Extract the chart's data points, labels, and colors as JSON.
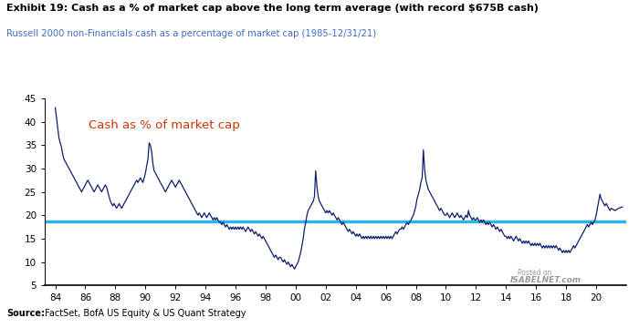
{
  "title": "Exhibit 19: Cash as a % of market cap above the long term average (with record $675B cash)",
  "subtitle": "Russell 2000 non-Financials cash as a percentage of market cap (1985-12/31/21)",
  "annotation": "Cash as % of market cap",
  "avg_line": 18.7,
  "avg_line_color": "#29B5E8",
  "line_color": "#0D1F6E",
  "source_bold": "Source:",
  "source_text": " FactSet, BofA US Equity & US Quant Strategy",
  "ylim": [
    5,
    45
  ],
  "yticks": [
    5,
    10,
    15,
    20,
    25,
    30,
    35,
    40,
    45
  ],
  "xtick_labels": [
    "84",
    "86",
    "88",
    "90",
    "92",
    "94",
    "96",
    "98",
    "00",
    "02",
    "04",
    "06",
    "08",
    "10",
    "12",
    "14",
    "16",
    "18",
    "20"
  ],
  "xtick_years": [
    1984,
    1986,
    1988,
    1990,
    1992,
    1994,
    1996,
    1998,
    2000,
    2002,
    2004,
    2006,
    2008,
    2010,
    2012,
    2014,
    2016,
    2018,
    2020
  ],
  "xlim": [
    1983.3,
    2022.0
  ],
  "data": [
    [
      1984.0,
      43.0
    ],
    [
      1984.08,
      41.0
    ],
    [
      1984.17,
      38.5
    ],
    [
      1984.25,
      36.5
    ],
    [
      1984.33,
      35.5
    ],
    [
      1984.42,
      34.5
    ],
    [
      1984.5,
      33.0
    ],
    [
      1984.58,
      32.0
    ],
    [
      1984.67,
      31.5
    ],
    [
      1984.75,
      31.0
    ],
    [
      1984.83,
      30.5
    ],
    [
      1984.92,
      30.0
    ],
    [
      1985.0,
      29.5
    ],
    [
      1985.08,
      29.0
    ],
    [
      1985.17,
      28.5
    ],
    [
      1985.25,
      28.0
    ],
    [
      1985.33,
      27.5
    ],
    [
      1985.42,
      27.0
    ],
    [
      1985.5,
      26.5
    ],
    [
      1985.58,
      26.0
    ],
    [
      1985.67,
      25.5
    ],
    [
      1985.75,
      25.0
    ],
    [
      1985.83,
      25.5
    ],
    [
      1985.92,
      26.0
    ],
    [
      1986.0,
      26.5
    ],
    [
      1986.08,
      27.0
    ],
    [
      1986.17,
      27.5
    ],
    [
      1986.25,
      27.0
    ],
    [
      1986.33,
      26.5
    ],
    [
      1986.42,
      26.0
    ],
    [
      1986.5,
      25.5
    ],
    [
      1986.58,
      25.0
    ],
    [
      1986.67,
      25.5
    ],
    [
      1986.75,
      26.0
    ],
    [
      1986.83,
      26.5
    ],
    [
      1986.92,
      26.0
    ],
    [
      1987.0,
      25.5
    ],
    [
      1987.08,
      25.0
    ],
    [
      1987.17,
      25.5
    ],
    [
      1987.25,
      26.0
    ],
    [
      1987.33,
      26.5
    ],
    [
      1987.42,
      26.0
    ],
    [
      1987.5,
      25.0
    ],
    [
      1987.58,
      24.0
    ],
    [
      1987.67,
      23.0
    ],
    [
      1987.75,
      22.5
    ],
    [
      1987.83,
      22.0
    ],
    [
      1987.92,
      22.5
    ],
    [
      1988.0,
      22.0
    ],
    [
      1988.08,
      21.5
    ],
    [
      1988.17,
      22.0
    ],
    [
      1988.25,
      22.5
    ],
    [
      1988.33,
      22.0
    ],
    [
      1988.42,
      21.5
    ],
    [
      1988.5,
      22.0
    ],
    [
      1988.58,
      22.5
    ],
    [
      1988.67,
      23.0
    ],
    [
      1988.75,
      23.5
    ],
    [
      1988.83,
      24.0
    ],
    [
      1988.92,
      24.5
    ],
    [
      1989.0,
      25.0
    ],
    [
      1989.08,
      25.5
    ],
    [
      1989.17,
      26.0
    ],
    [
      1989.25,
      26.5
    ],
    [
      1989.33,
      27.0
    ],
    [
      1989.42,
      27.5
    ],
    [
      1989.5,
      27.0
    ],
    [
      1989.58,
      27.5
    ],
    [
      1989.67,
      28.0
    ],
    [
      1989.75,
      27.5
    ],
    [
      1989.83,
      27.0
    ],
    [
      1989.92,
      28.0
    ],
    [
      1990.0,
      29.0
    ],
    [
      1990.08,
      30.5
    ],
    [
      1990.17,
      32.0
    ],
    [
      1990.25,
      35.5
    ],
    [
      1990.33,
      35.0
    ],
    [
      1990.42,
      33.5
    ],
    [
      1990.5,
      31.0
    ],
    [
      1990.58,
      29.5
    ],
    [
      1990.67,
      29.0
    ],
    [
      1990.75,
      28.5
    ],
    [
      1990.83,
      28.0
    ],
    [
      1990.92,
      27.5
    ],
    [
      1991.0,
      27.0
    ],
    [
      1991.08,
      26.5
    ],
    [
      1991.17,
      26.0
    ],
    [
      1991.25,
      25.5
    ],
    [
      1991.33,
      25.0
    ],
    [
      1991.42,
      25.5
    ],
    [
      1991.5,
      26.0
    ],
    [
      1991.58,
      26.5
    ],
    [
      1991.67,
      27.0
    ],
    [
      1991.75,
      27.5
    ],
    [
      1991.83,
      27.0
    ],
    [
      1991.92,
      26.5
    ],
    [
      1992.0,
      26.0
    ],
    [
      1992.08,
      26.5
    ],
    [
      1992.17,
      27.0
    ],
    [
      1992.25,
      27.5
    ],
    [
      1992.33,
      27.0
    ],
    [
      1992.42,
      26.5
    ],
    [
      1992.5,
      26.0
    ],
    [
      1992.58,
      25.5
    ],
    [
      1992.67,
      25.0
    ],
    [
      1992.75,
      24.5
    ],
    [
      1992.83,
      24.0
    ],
    [
      1992.92,
      23.5
    ],
    [
      1993.0,
      23.0
    ],
    [
      1993.08,
      22.5
    ],
    [
      1993.17,
      22.0
    ],
    [
      1993.25,
      21.5
    ],
    [
      1993.33,
      21.0
    ],
    [
      1993.42,
      20.5
    ],
    [
      1993.5,
      20.0
    ],
    [
      1993.58,
      20.5
    ],
    [
      1993.67,
      20.0
    ],
    [
      1993.75,
      19.5
    ],
    [
      1993.83,
      20.0
    ],
    [
      1993.92,
      20.5
    ],
    [
      1994.0,
      20.0
    ],
    [
      1994.08,
      19.5
    ],
    [
      1994.17,
      20.0
    ],
    [
      1994.25,
      20.5
    ],
    [
      1994.33,
      20.0
    ],
    [
      1994.42,
      19.5
    ],
    [
      1994.5,
      19.0
    ],
    [
      1994.58,
      19.5
    ],
    [
      1994.67,
      19.0
    ],
    [
      1994.75,
      19.5
    ],
    [
      1994.83,
      19.0
    ],
    [
      1994.92,
      18.5
    ],
    [
      1995.0,
      18.5
    ],
    [
      1995.08,
      18.0
    ],
    [
      1995.17,
      18.5
    ],
    [
      1995.25,
      18.0
    ],
    [
      1995.33,
      17.5
    ],
    [
      1995.42,
      18.0
    ],
    [
      1995.5,
      17.5
    ],
    [
      1995.58,
      17.0
    ],
    [
      1995.67,
      17.5
    ],
    [
      1995.75,
      17.0
    ],
    [
      1995.83,
      17.5
    ],
    [
      1995.92,
      17.0
    ],
    [
      1996.0,
      17.5
    ],
    [
      1996.08,
      17.0
    ],
    [
      1996.17,
      17.5
    ],
    [
      1996.25,
      17.0
    ],
    [
      1996.33,
      17.5
    ],
    [
      1996.42,
      17.0
    ],
    [
      1996.5,
      17.5
    ],
    [
      1996.58,
      17.0
    ],
    [
      1996.67,
      16.5
    ],
    [
      1996.75,
      17.0
    ],
    [
      1996.83,
      17.5
    ],
    [
      1996.92,
      17.0
    ],
    [
      1997.0,
      16.5
    ],
    [
      1997.08,
      17.0
    ],
    [
      1997.17,
      16.5
    ],
    [
      1997.25,
      16.0
    ],
    [
      1997.33,
      16.5
    ],
    [
      1997.42,
      16.0
    ],
    [
      1997.5,
      15.5
    ],
    [
      1997.58,
      16.0
    ],
    [
      1997.67,
      15.5
    ],
    [
      1997.75,
      15.0
    ],
    [
      1997.83,
      15.5
    ],
    [
      1997.92,
      15.0
    ],
    [
      1998.0,
      14.5
    ],
    [
      1998.08,
      14.0
    ],
    [
      1998.17,
      13.5
    ],
    [
      1998.25,
      13.0
    ],
    [
      1998.33,
      12.5
    ],
    [
      1998.42,
      12.0
    ],
    [
      1998.5,
      11.5
    ],
    [
      1998.58,
      11.0
    ],
    [
      1998.67,
      11.5
    ],
    [
      1998.75,
      11.0
    ],
    [
      1998.83,
      10.5
    ],
    [
      1998.92,
      11.0
    ],
    [
      1999.0,
      11.0
    ],
    [
      1999.08,
      10.5
    ],
    [
      1999.17,
      10.0
    ],
    [
      1999.25,
      10.5
    ],
    [
      1999.33,
      10.0
    ],
    [
      1999.42,
      9.5
    ],
    [
      1999.5,
      10.0
    ],
    [
      1999.58,
      9.5
    ],
    [
      1999.67,
      9.0
    ],
    [
      1999.75,
      9.5
    ],
    [
      1999.83,
      9.0
    ],
    [
      1999.92,
      8.5
    ],
    [
      2000.0,
      9.0
    ],
    [
      2000.08,
      9.5
    ],
    [
      2000.17,
      10.0
    ],
    [
      2000.25,
      11.0
    ],
    [
      2000.33,
      12.0
    ],
    [
      2000.42,
      13.5
    ],
    [
      2000.5,
      15.0
    ],
    [
      2000.58,
      17.0
    ],
    [
      2000.67,
      18.5
    ],
    [
      2000.75,
      20.0
    ],
    [
      2000.83,
      21.0
    ],
    [
      2000.92,
      21.5
    ],
    [
      2001.0,
      22.0
    ],
    [
      2001.08,
      22.5
    ],
    [
      2001.17,
      23.0
    ],
    [
      2001.25,
      24.0
    ],
    [
      2001.33,
      29.5
    ],
    [
      2001.42,
      26.0
    ],
    [
      2001.5,
      24.0
    ],
    [
      2001.58,
      23.0
    ],
    [
      2001.67,
      22.5
    ],
    [
      2001.75,
      22.0
    ],
    [
      2001.83,
      21.5
    ],
    [
      2001.92,
      21.0
    ],
    [
      2002.0,
      20.5
    ],
    [
      2002.08,
      21.0
    ],
    [
      2002.17,
      20.5
    ],
    [
      2002.25,
      21.0
    ],
    [
      2002.33,
      20.5
    ],
    [
      2002.42,
      20.0
    ],
    [
      2002.5,
      20.5
    ],
    [
      2002.58,
      20.0
    ],
    [
      2002.67,
      19.5
    ],
    [
      2002.75,
      19.0
    ],
    [
      2002.83,
      19.5
    ],
    [
      2002.92,
      19.0
    ],
    [
      2003.0,
      18.5
    ],
    [
      2003.08,
      18.0
    ],
    [
      2003.17,
      18.5
    ],
    [
      2003.25,
      18.0
    ],
    [
      2003.33,
      17.5
    ],
    [
      2003.42,
      17.0
    ],
    [
      2003.5,
      16.5
    ],
    [
      2003.58,
      17.0
    ],
    [
      2003.67,
      16.5
    ],
    [
      2003.75,
      16.0
    ],
    [
      2003.83,
      16.5
    ],
    [
      2003.92,
      16.0
    ],
    [
      2004.0,
      15.5
    ],
    [
      2004.08,
      16.0
    ],
    [
      2004.17,
      15.5
    ],
    [
      2004.25,
      16.0
    ],
    [
      2004.33,
      15.5
    ],
    [
      2004.42,
      15.0
    ],
    [
      2004.5,
      15.5
    ],
    [
      2004.58,
      15.0
    ],
    [
      2004.67,
      15.5
    ],
    [
      2004.75,
      15.0
    ],
    [
      2004.83,
      15.5
    ],
    [
      2004.92,
      15.0
    ],
    [
      2005.0,
      15.5
    ],
    [
      2005.08,
      15.0
    ],
    [
      2005.17,
      15.5
    ],
    [
      2005.25,
      15.0
    ],
    [
      2005.33,
      15.5
    ],
    [
      2005.42,
      15.0
    ],
    [
      2005.5,
      15.5
    ],
    [
      2005.58,
      15.0
    ],
    [
      2005.67,
      15.5
    ],
    [
      2005.75,
      15.0
    ],
    [
      2005.83,
      15.5
    ],
    [
      2005.92,
      15.0
    ],
    [
      2006.0,
      15.5
    ],
    [
      2006.08,
      15.0
    ],
    [
      2006.17,
      15.5
    ],
    [
      2006.25,
      15.0
    ],
    [
      2006.33,
      15.5
    ],
    [
      2006.42,
      15.0
    ],
    [
      2006.5,
      15.5
    ],
    [
      2006.58,
      16.0
    ],
    [
      2006.67,
      16.5
    ],
    [
      2006.75,
      16.0
    ],
    [
      2006.83,
      16.5
    ],
    [
      2006.92,
      17.0
    ],
    [
      2007.0,
      17.0
    ],
    [
      2007.08,
      17.5
    ],
    [
      2007.17,
      17.0
    ],
    [
      2007.25,
      17.5
    ],
    [
      2007.33,
      18.0
    ],
    [
      2007.42,
      18.5
    ],
    [
      2007.5,
      18.0
    ],
    [
      2007.58,
      18.5
    ],
    [
      2007.67,
      19.0
    ],
    [
      2007.75,
      19.5
    ],
    [
      2007.83,
      20.0
    ],
    [
      2007.92,
      21.0
    ],
    [
      2008.0,
      22.0
    ],
    [
      2008.08,
      23.5
    ],
    [
      2008.17,
      24.5
    ],
    [
      2008.25,
      25.5
    ],
    [
      2008.33,
      27.0
    ],
    [
      2008.42,
      28.0
    ],
    [
      2008.5,
      34.0
    ],
    [
      2008.58,
      30.0
    ],
    [
      2008.67,
      27.5
    ],
    [
      2008.75,
      26.5
    ],
    [
      2008.83,
      25.5
    ],
    [
      2008.92,
      25.0
    ],
    [
      2009.0,
      24.5
    ],
    [
      2009.08,
      24.0
    ],
    [
      2009.17,
      23.5
    ],
    [
      2009.25,
      23.0
    ],
    [
      2009.33,
      22.5
    ],
    [
      2009.42,
      22.0
    ],
    [
      2009.5,
      21.5
    ],
    [
      2009.58,
      21.0
    ],
    [
      2009.67,
      21.5
    ],
    [
      2009.75,
      21.0
    ],
    [
      2009.83,
      20.5
    ],
    [
      2009.92,
      20.0
    ],
    [
      2010.0,
      20.0
    ],
    [
      2010.08,
      20.5
    ],
    [
      2010.17,
      20.0
    ],
    [
      2010.25,
      19.5
    ],
    [
      2010.33,
      20.0
    ],
    [
      2010.42,
      20.5
    ],
    [
      2010.5,
      20.0
    ],
    [
      2010.58,
      19.5
    ],
    [
      2010.67,
      20.0
    ],
    [
      2010.75,
      20.5
    ],
    [
      2010.83,
      20.0
    ],
    [
      2010.92,
      19.5
    ],
    [
      2011.0,
      20.0
    ],
    [
      2011.08,
      19.5
    ],
    [
      2011.17,
      19.0
    ],
    [
      2011.25,
      19.5
    ],
    [
      2011.33,
      20.0
    ],
    [
      2011.42,
      19.5
    ],
    [
      2011.5,
      21.0
    ],
    [
      2011.58,
      20.0
    ],
    [
      2011.67,
      19.5
    ],
    [
      2011.75,
      19.0
    ],
    [
      2011.83,
      19.5
    ],
    [
      2011.92,
      19.0
    ],
    [
      2012.0,
      19.0
    ],
    [
      2012.08,
      19.5
    ],
    [
      2012.17,
      19.0
    ],
    [
      2012.25,
      18.5
    ],
    [
      2012.33,
      19.0
    ],
    [
      2012.42,
      18.5
    ],
    [
      2012.5,
      19.0
    ],
    [
      2012.58,
      18.5
    ],
    [
      2012.67,
      18.0
    ],
    [
      2012.75,
      18.5
    ],
    [
      2012.83,
      18.0
    ],
    [
      2012.92,
      18.5
    ],
    [
      2013.0,
      18.0
    ],
    [
      2013.08,
      17.5
    ],
    [
      2013.17,
      18.0
    ],
    [
      2013.25,
      17.5
    ],
    [
      2013.33,
      17.0
    ],
    [
      2013.42,
      17.5
    ],
    [
      2013.5,
      17.0
    ],
    [
      2013.58,
      16.5
    ],
    [
      2013.67,
      17.0
    ],
    [
      2013.75,
      16.5
    ],
    [
      2013.83,
      16.0
    ],
    [
      2013.92,
      15.5
    ],
    [
      2014.0,
      15.5
    ],
    [
      2014.08,
      15.0
    ],
    [
      2014.17,
      15.5
    ],
    [
      2014.25,
      15.0
    ],
    [
      2014.33,
      15.5
    ],
    [
      2014.42,
      15.0
    ],
    [
      2014.5,
      14.5
    ],
    [
      2014.58,
      15.0
    ],
    [
      2014.67,
      15.5
    ],
    [
      2014.75,
      15.0
    ],
    [
      2014.83,
      14.5
    ],
    [
      2014.92,
      15.0
    ],
    [
      2015.0,
      14.5
    ],
    [
      2015.08,
      14.0
    ],
    [
      2015.17,
      14.5
    ],
    [
      2015.25,
      14.0
    ],
    [
      2015.33,
      14.5
    ],
    [
      2015.42,
      14.0
    ],
    [
      2015.5,
      14.5
    ],
    [
      2015.58,
      14.0
    ],
    [
      2015.67,
      13.5
    ],
    [
      2015.75,
      14.0
    ],
    [
      2015.83,
      13.5
    ],
    [
      2015.92,
      14.0
    ],
    [
      2016.0,
      13.5
    ],
    [
      2016.08,
      14.0
    ],
    [
      2016.17,
      13.5
    ],
    [
      2016.25,
      14.0
    ],
    [
      2016.33,
      13.5
    ],
    [
      2016.42,
      13.0
    ],
    [
      2016.5,
      13.5
    ],
    [
      2016.58,
      13.0
    ],
    [
      2016.67,
      13.5
    ],
    [
      2016.75,
      13.0
    ],
    [
      2016.83,
      13.5
    ],
    [
      2016.92,
      13.0
    ],
    [
      2017.0,
      13.5
    ],
    [
      2017.08,
      13.0
    ],
    [
      2017.17,
      13.5
    ],
    [
      2017.25,
      13.0
    ],
    [
      2017.33,
      13.5
    ],
    [
      2017.42,
      13.0
    ],
    [
      2017.5,
      12.5
    ],
    [
      2017.58,
      13.0
    ],
    [
      2017.67,
      12.5
    ],
    [
      2017.75,
      12.0
    ],
    [
      2017.83,
      12.5
    ],
    [
      2017.92,
      12.0
    ],
    [
      2018.0,
      12.5
    ],
    [
      2018.08,
      12.0
    ],
    [
      2018.17,
      12.5
    ],
    [
      2018.25,
      12.0
    ],
    [
      2018.33,
      12.5
    ],
    [
      2018.42,
      13.0
    ],
    [
      2018.5,
      13.5
    ],
    [
      2018.58,
      13.0
    ],
    [
      2018.67,
      13.5
    ],
    [
      2018.75,
      14.0
    ],
    [
      2018.83,
      14.5
    ],
    [
      2018.92,
      15.0
    ],
    [
      2019.0,
      15.5
    ],
    [
      2019.08,
      16.0
    ],
    [
      2019.17,
      16.5
    ],
    [
      2019.25,
      17.0
    ],
    [
      2019.33,
      17.5
    ],
    [
      2019.42,
      18.0
    ],
    [
      2019.5,
      17.5
    ],
    [
      2019.58,
      18.0
    ],
    [
      2019.67,
      18.5
    ],
    [
      2019.75,
      18.0
    ],
    [
      2019.83,
      18.5
    ],
    [
      2019.92,
      19.0
    ],
    [
      2020.0,
      20.0
    ],
    [
      2020.08,
      21.5
    ],
    [
      2020.17,
      23.0
    ],
    [
      2020.25,
      24.5
    ],
    [
      2020.33,
      23.5
    ],
    [
      2020.42,
      23.0
    ],
    [
      2020.5,
      22.5
    ],
    [
      2020.58,
      22.0
    ],
    [
      2020.67,
      22.5
    ],
    [
      2020.75,
      22.0
    ],
    [
      2020.83,
      21.5
    ],
    [
      2020.92,
      21.0
    ],
    [
      2021.0,
      21.5
    ],
    [
      2021.25,
      21.0
    ],
    [
      2021.5,
      21.5
    ],
    [
      2021.75,
      21.8
    ]
  ]
}
